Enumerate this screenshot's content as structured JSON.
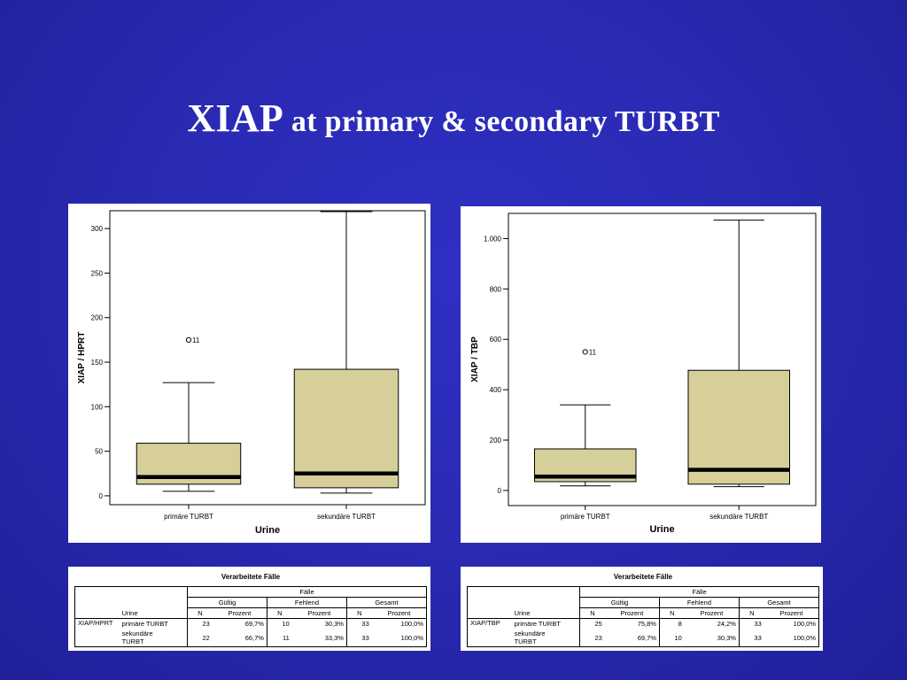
{
  "slide": {
    "title_big": "XIAP",
    "title_rest": " at primary & secondary TURBT",
    "background": "#2a2ab4"
  },
  "chart_data": [
    {
      "type": "boxplot",
      "ylabel": "XIAP / HPRT",
      "xlabel": "Urine",
      "ylim": [
        -10,
        320
      ],
      "yticks": [
        0,
        50,
        100,
        150,
        200,
        250,
        300
      ],
      "ytick_labels": [
        "0",
        "50",
        "100",
        "150",
        "200",
        "250",
        "300"
      ],
      "categories": [
        "primäre TURBT",
        "sekundäre TURBT"
      ],
      "box_color": "#d6cf9a",
      "boxes": [
        {
          "min": 5,
          "q1": 13,
          "median": 21,
          "q3": 59,
          "max": 127,
          "outliers": [
            {
              "value": 175,
              "label": "11"
            }
          ]
        },
        {
          "min": 3,
          "q1": 9,
          "median": 25,
          "q3": 142,
          "max": 319,
          "outliers": []
        }
      ]
    },
    {
      "type": "boxplot",
      "ylabel": "XIAP / TBP",
      "xlabel": "Urine",
      "ylim": [
        -60,
        1100
      ],
      "yticks": [
        0,
        200,
        400,
        600,
        800,
        1000
      ],
      "ytick_labels": [
        "0",
        "200",
        "400",
        "600",
        "800",
        "1.000"
      ],
      "categories": [
        "primäre TURBT",
        "sekundäre TURBT"
      ],
      "box_color": "#d6cf9a",
      "boxes": [
        {
          "min": 18,
          "q1": 35,
          "median": 55,
          "q3": 165,
          "max": 340,
          "outliers": [
            {
              "value": 550,
              "label": "11"
            }
          ]
        },
        {
          "min": 15,
          "q1": 25,
          "median": 82,
          "q3": 477,
          "max": 1073,
          "outliers": []
        }
      ]
    }
  ],
  "tables": [
    {
      "caption": "Verarbeitete Fälle",
      "faelle": "Fälle",
      "groups": [
        "Gültig",
        "Fehlend",
        "Gesamt"
      ],
      "row_label_header": "Urine",
      "col_headers": [
        "N",
        "Prozent",
        "N",
        "Prozent",
        "N",
        "Prozent"
      ],
      "var": "XIAP/HPRT",
      "rows": [
        {
          "label": "primäre TURBT",
          "cells": [
            "23",
            "69,7%",
            "10",
            "30,3%",
            "33",
            "100,0%"
          ]
        },
        {
          "label": "sekundäre TURBT",
          "cells": [
            "22",
            "66,7%",
            "11",
            "33,3%",
            "33",
            "100,0%"
          ]
        }
      ]
    },
    {
      "caption": "Verarbeitete Fälle",
      "faelle": "Fälle",
      "groups": [
        "Gültig",
        "Fehlend",
        "Gesamt"
      ],
      "row_label_header": "Urine",
      "col_headers": [
        "N",
        "Prozent",
        "N",
        "Prozent",
        "N",
        "Prozent"
      ],
      "var": "XIAP/TBP",
      "rows": [
        {
          "label": "primäre TURBT",
          "cells": [
            "25",
            "75,8%",
            "8",
            "24,2%",
            "33",
            "100,0%"
          ]
        },
        {
          "label": "sekundäre TURBT",
          "cells": [
            "23",
            "69,7%",
            "10",
            "30,3%",
            "33",
            "100,0%"
          ]
        }
      ]
    }
  ]
}
